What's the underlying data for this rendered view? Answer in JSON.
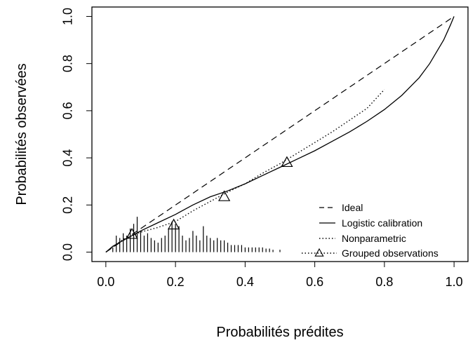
{
  "chart_data": {
    "type": "line",
    "title": "",
    "xlabel": "Probabilités prédites",
    "ylabel": "Probabilités observées",
    "xlim": [
      -0.04,
      1.04
    ],
    "ylim": [
      -0.04,
      1.04
    ],
    "x_ticks": [
      "0.0",
      "0.2",
      "0.4",
      "0.6",
      "0.8",
      "1.0"
    ],
    "y_ticks": [
      "0.0",
      "0.2",
      "0.4",
      "0.6",
      "0.8",
      "1.0"
    ],
    "grid": false,
    "legend_position": "bottom-right",
    "legend": [
      "Ideal",
      "Logistic calibration",
      "Nonparametric",
      "Grouped observations"
    ],
    "series": [
      {
        "name": "Ideal",
        "style": "dashed",
        "x": [
          0,
          1
        ],
        "y": [
          0,
          1
        ]
      },
      {
        "name": "Logistic calibration",
        "style": "solid",
        "x": [
          0.0,
          0.02,
          0.05,
          0.1,
          0.15,
          0.2,
          0.25,
          0.3,
          0.35,
          0.4,
          0.45,
          0.5,
          0.55,
          0.6,
          0.65,
          0.7,
          0.75,
          0.8,
          0.85,
          0.9,
          0.93,
          0.95,
          0.97,
          0.99,
          1.0
        ],
        "y": [
          0.0,
          0.025,
          0.05,
          0.09,
          0.125,
          0.16,
          0.2,
          0.235,
          0.26,
          0.29,
          0.325,
          0.36,
          0.395,
          0.43,
          0.47,
          0.51,
          0.555,
          0.605,
          0.665,
          0.74,
          0.8,
          0.85,
          0.9,
          0.965,
          1.0
        ]
      },
      {
        "name": "Nonparametric",
        "style": "dotted",
        "x": [
          0.0,
          0.05,
          0.1,
          0.15,
          0.2,
          0.25,
          0.3,
          0.35,
          0.4,
          0.45,
          0.5,
          0.55,
          0.6,
          0.65,
          0.7,
          0.75,
          0.8
        ],
        "y": [
          0.0,
          0.055,
          0.085,
          0.105,
          0.13,
          0.175,
          0.215,
          0.255,
          0.29,
          0.335,
          0.375,
          0.42,
          0.465,
          0.51,
          0.56,
          0.61,
          0.69
        ]
      },
      {
        "name": "Grouped observations",
        "style": "triangles",
        "x": [
          0.075,
          0.195,
          0.34,
          0.52
        ],
        "y": [
          0.075,
          0.115,
          0.235,
          0.38
        ]
      }
    ],
    "histogram": {
      "x": [
        0.02,
        0.03,
        0.04,
        0.05,
        0.06,
        0.07,
        0.08,
        0.09,
        0.1,
        0.11,
        0.12,
        0.13,
        0.14,
        0.15,
        0.16,
        0.17,
        0.18,
        0.19,
        0.2,
        0.21,
        0.22,
        0.23,
        0.24,
        0.25,
        0.26,
        0.27,
        0.28,
        0.29,
        0.3,
        0.31,
        0.32,
        0.33,
        0.34,
        0.35,
        0.36,
        0.37,
        0.38,
        0.39,
        0.4,
        0.41,
        0.42,
        0.43,
        0.44,
        0.45,
        0.46,
        0.47,
        0.48,
        0.5
      ],
      "height": [
        0.02,
        0.07,
        0.06,
        0.08,
        0.07,
        0.1,
        0.12,
        0.15,
        0.09,
        0.07,
        0.08,
        0.06,
        0.05,
        0.04,
        0.06,
        0.07,
        0.1,
        0.13,
        0.12,
        0.11,
        0.07,
        0.05,
        0.06,
        0.09,
        0.07,
        0.05,
        0.11,
        0.07,
        0.06,
        0.05,
        0.06,
        0.05,
        0.05,
        0.04,
        0.03,
        0.03,
        0.03,
        0.03,
        0.02,
        0.02,
        0.02,
        0.02,
        0.02,
        0.02,
        0.015,
        0.015,
        0.01,
        0.01
      ]
    }
  }
}
